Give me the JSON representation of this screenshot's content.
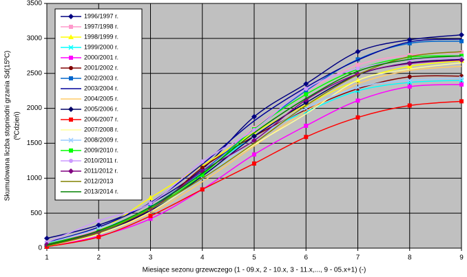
{
  "chart_data": {
    "type": "line",
    "y_label": "Skumulowana liczba stopniodni grzania Sd(15ºC)",
    "y_label_2": "(ºCdzień)",
    "x_label": "Miesiące sezonu grzewczego (1 - 09.x, 2 - 10.x, 3 - 11.x,..., 9 - 05.x+1) (-)",
    "x": [
      1,
      2,
      3,
      4,
      5,
      6,
      7,
      8,
      9
    ],
    "xlim": [
      1,
      9
    ],
    "xticks": [
      1,
      2,
      3,
      4,
      5,
      6,
      7,
      8,
      9
    ],
    "ylim": [
      0,
      3500
    ],
    "yticks": [
      0,
      500,
      1000,
      1500,
      2000,
      2500,
      3000,
      3500
    ],
    "grid": true,
    "legend": "upper left",
    "series": [
      {
        "name": "1996/1997 r.",
        "color": "#000080",
        "marker": "diamond",
        "values": [
          140,
          330,
          640,
          1130,
          1880,
          2350,
          2810,
          2980,
          3050
        ]
      },
      {
        "name": "1997/1998 r.",
        "color": "#ff99cc",
        "marker": "square",
        "values": [
          80,
          260,
          560,
          1100,
          1720,
          2240,
          2620,
          2760,
          2800
        ]
      },
      {
        "name": "1998/1999 r.",
        "color": "#ffff00",
        "marker": "triangle",
        "values": [
          50,
          250,
          720,
          1180,
          1650,
          2050,
          2400,
          2600,
          2680
        ]
      },
      {
        "name": "1999/2000 r.",
        "color": "#00ffff",
        "marker": "x",
        "values": [
          40,
          230,
          580,
          1080,
          1600,
          1950,
          2250,
          2370,
          2400
        ]
      },
      {
        "name": "2000/2001 r.",
        "color": "#ff00ff",
        "marker": "square",
        "values": [
          20,
          170,
          420,
          840,
          1340,
          1750,
          2110,
          2310,
          2340
        ]
      },
      {
        "name": "2001/2002 r.",
        "color": "#800000",
        "marker": "circle",
        "values": [
          60,
          240,
          530,
          1150,
          1600,
          1980,
          2280,
          2450,
          2460
        ]
      },
      {
        "name": "2002/2003 r.",
        "color": "#0066cc",
        "marker": "square",
        "values": [
          60,
          240,
          590,
          1100,
          1700,
          2250,
          2700,
          2930,
          2960
        ]
      },
      {
        "name": "2003/2004 r.",
        "color": "#000099",
        "marker": null,
        "values": [
          80,
          300,
          650,
          1200,
          1820,
          2300,
          2690,
          2950,
          2990
        ]
      },
      {
        "name": "2004/2005 r.",
        "color": "#ffcc66",
        "marker": null,
        "values": [
          30,
          200,
          500,
          950,
          1460,
          1960,
          2350,
          2540,
          2600
        ]
      },
      {
        "name": "2005/2006 r.",
        "color": "#000066",
        "marker": "diamond",
        "values": [
          30,
          220,
          540,
          1030,
          1600,
          2080,
          2480,
          2650,
          2700
        ]
      },
      {
        "name": "2006/2007 r.",
        "color": "#ff0000",
        "marker": "square",
        "values": [
          20,
          160,
          460,
          840,
          1210,
          1590,
          1870,
          2040,
          2100
        ]
      },
      {
        "name": "2007/2008 r.",
        "color": "#ffff99",
        "marker": null,
        "values": [
          30,
          200,
          520,
          1000,
          1480,
          1920,
          2400,
          2560,
          2650
        ]
      },
      {
        "name": "2008/2009 r.",
        "color": "#99ccff",
        "marker": "x",
        "values": [
          70,
          280,
          560,
          1000,
          1550,
          2000,
          2300,
          2400,
          2430
        ]
      },
      {
        "name": "2009/2010 r.",
        "color": "#00ff00",
        "marker": "square",
        "values": [
          60,
          240,
          570,
          1050,
          1700,
          2200,
          2560,
          2730,
          2750
        ]
      },
      {
        "name": "2010/2011 r.",
        "color": "#cc99ff",
        "marker": "circle",
        "values": [
          80,
          390,
          640,
          1240,
          1690,
          2280,
          2570,
          2690,
          2720
        ]
      },
      {
        "name": "2011/2012 r.",
        "color": "#800080",
        "marker": "diamond",
        "values": [
          50,
          230,
          560,
          1100,
          1540,
          2120,
          2490,
          2640,
          2690
        ]
      },
      {
        "name": "2012/2013",
        "color": "#808000",
        "marker": null,
        "values": [
          30,
          220,
          560,
          1000,
          1500,
          2040,
          2480,
          2740,
          2810
        ]
      },
      {
        "name": "2013/2014 r.",
        "color": "#008000",
        "marker": null,
        "values": [
          40,
          250,
          590,
          1070,
          1650,
          2140,
          2530,
          2700,
          2750
        ]
      }
    ]
  }
}
